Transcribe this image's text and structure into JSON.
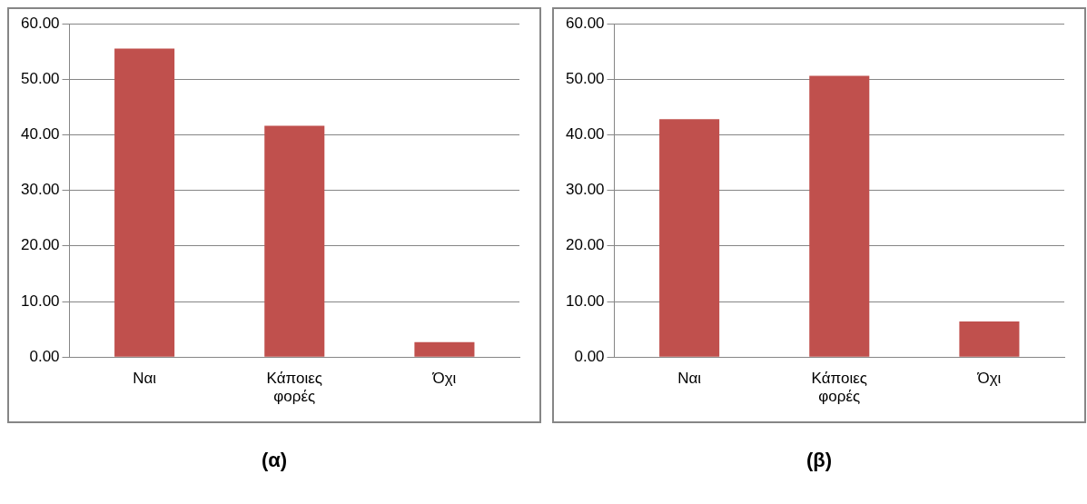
{
  "chart_data": [
    {
      "type": "bar",
      "title": "(α)",
      "categories": [
        "Ναι",
        "Κάποιες φορές",
        "Όχι"
      ],
      "values": [
        55.5,
        41.6,
        2.7
      ],
      "color": "#c0504d",
      "ylim": [
        0,
        60
      ],
      "yticks": [
        {
          "value": 0,
          "label": "0.00"
        },
        {
          "value": 10,
          "label": "10.00"
        },
        {
          "value": 20,
          "label": "20.00"
        },
        {
          "value": 30,
          "label": "30.00"
        },
        {
          "value": 40,
          "label": "40.00"
        },
        {
          "value": 50,
          "label": "50.00"
        },
        {
          "value": 60,
          "label": "60.00"
        }
      ],
      "grid": "y",
      "legend": false
    },
    {
      "type": "bar",
      "title": "(β)",
      "categories": [
        "Ναι",
        "Κάποιες φορές",
        "Όχι"
      ],
      "values": [
        42.8,
        50.6,
        6.4
      ],
      "color": "#c0504d",
      "ylim": [
        0,
        60
      ],
      "yticks": [
        {
          "value": 0,
          "label": "0.00"
        },
        {
          "value": 10,
          "label": "10.00"
        },
        {
          "value": 20,
          "label": "20.00"
        },
        {
          "value": 30,
          "label": "30.00"
        },
        {
          "value": 40,
          "label": "40.00"
        },
        {
          "value": 50,
          "label": "50.00"
        },
        {
          "value": 60,
          "label": "60.00"
        }
      ],
      "grid": "y",
      "legend": false
    }
  ]
}
